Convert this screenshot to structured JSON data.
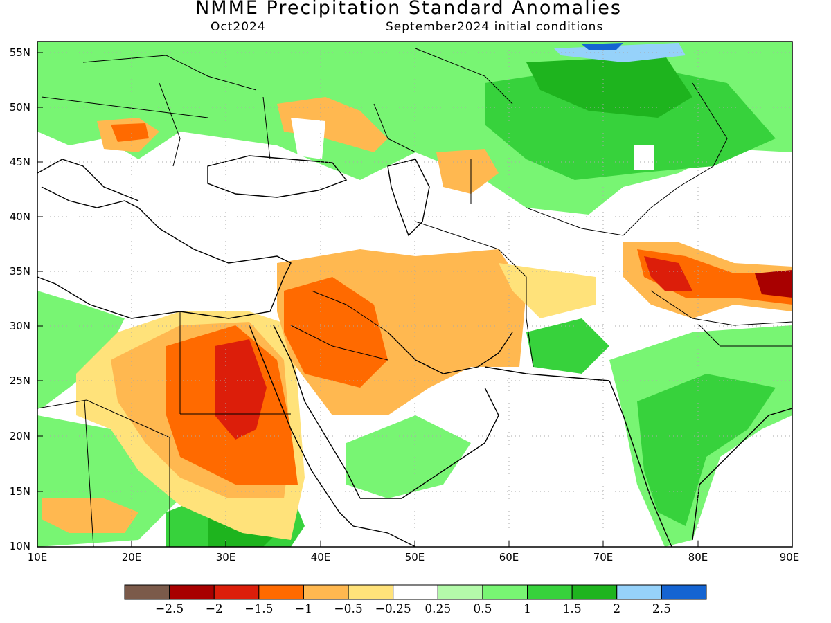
{
  "title": "NMME Precipitation Standard Anomalies",
  "forecast_month": "Oct2024",
  "initial_conditions": "September2024 initial conditions",
  "lat_labels": [
    "55N",
    "50N",
    "45N",
    "40N",
    "35N",
    "30N",
    "25N",
    "20N",
    "15N",
    "10N"
  ],
  "lon_labels": [
    "10E",
    "20E",
    "30E",
    "40E",
    "50E",
    "60E",
    "70E",
    "80E",
    "90E"
  ],
  "colorbar": {
    "colors": [
      "#7b5a4a",
      "#a80000",
      "#dc1e0a",
      "#ff6a00",
      "#ffb850",
      "#ffe27a",
      "#ffffff",
      "#b4faaa",
      "#78f573",
      "#37d23c",
      "#1eb41e",
      "#96d2fa",
      "#1464d2"
    ],
    "labels": [
      "−2.5",
      "−2",
      "−1.5",
      "−1",
      "−0.5",
      "−0.25",
      "0.25",
      "0.5",
      "1",
      "1.5",
      "2",
      "2.5"
    ]
  },
  "legend_colors": {
    "land_border": "#000000",
    "grid": "#aaaaaa"
  }
}
